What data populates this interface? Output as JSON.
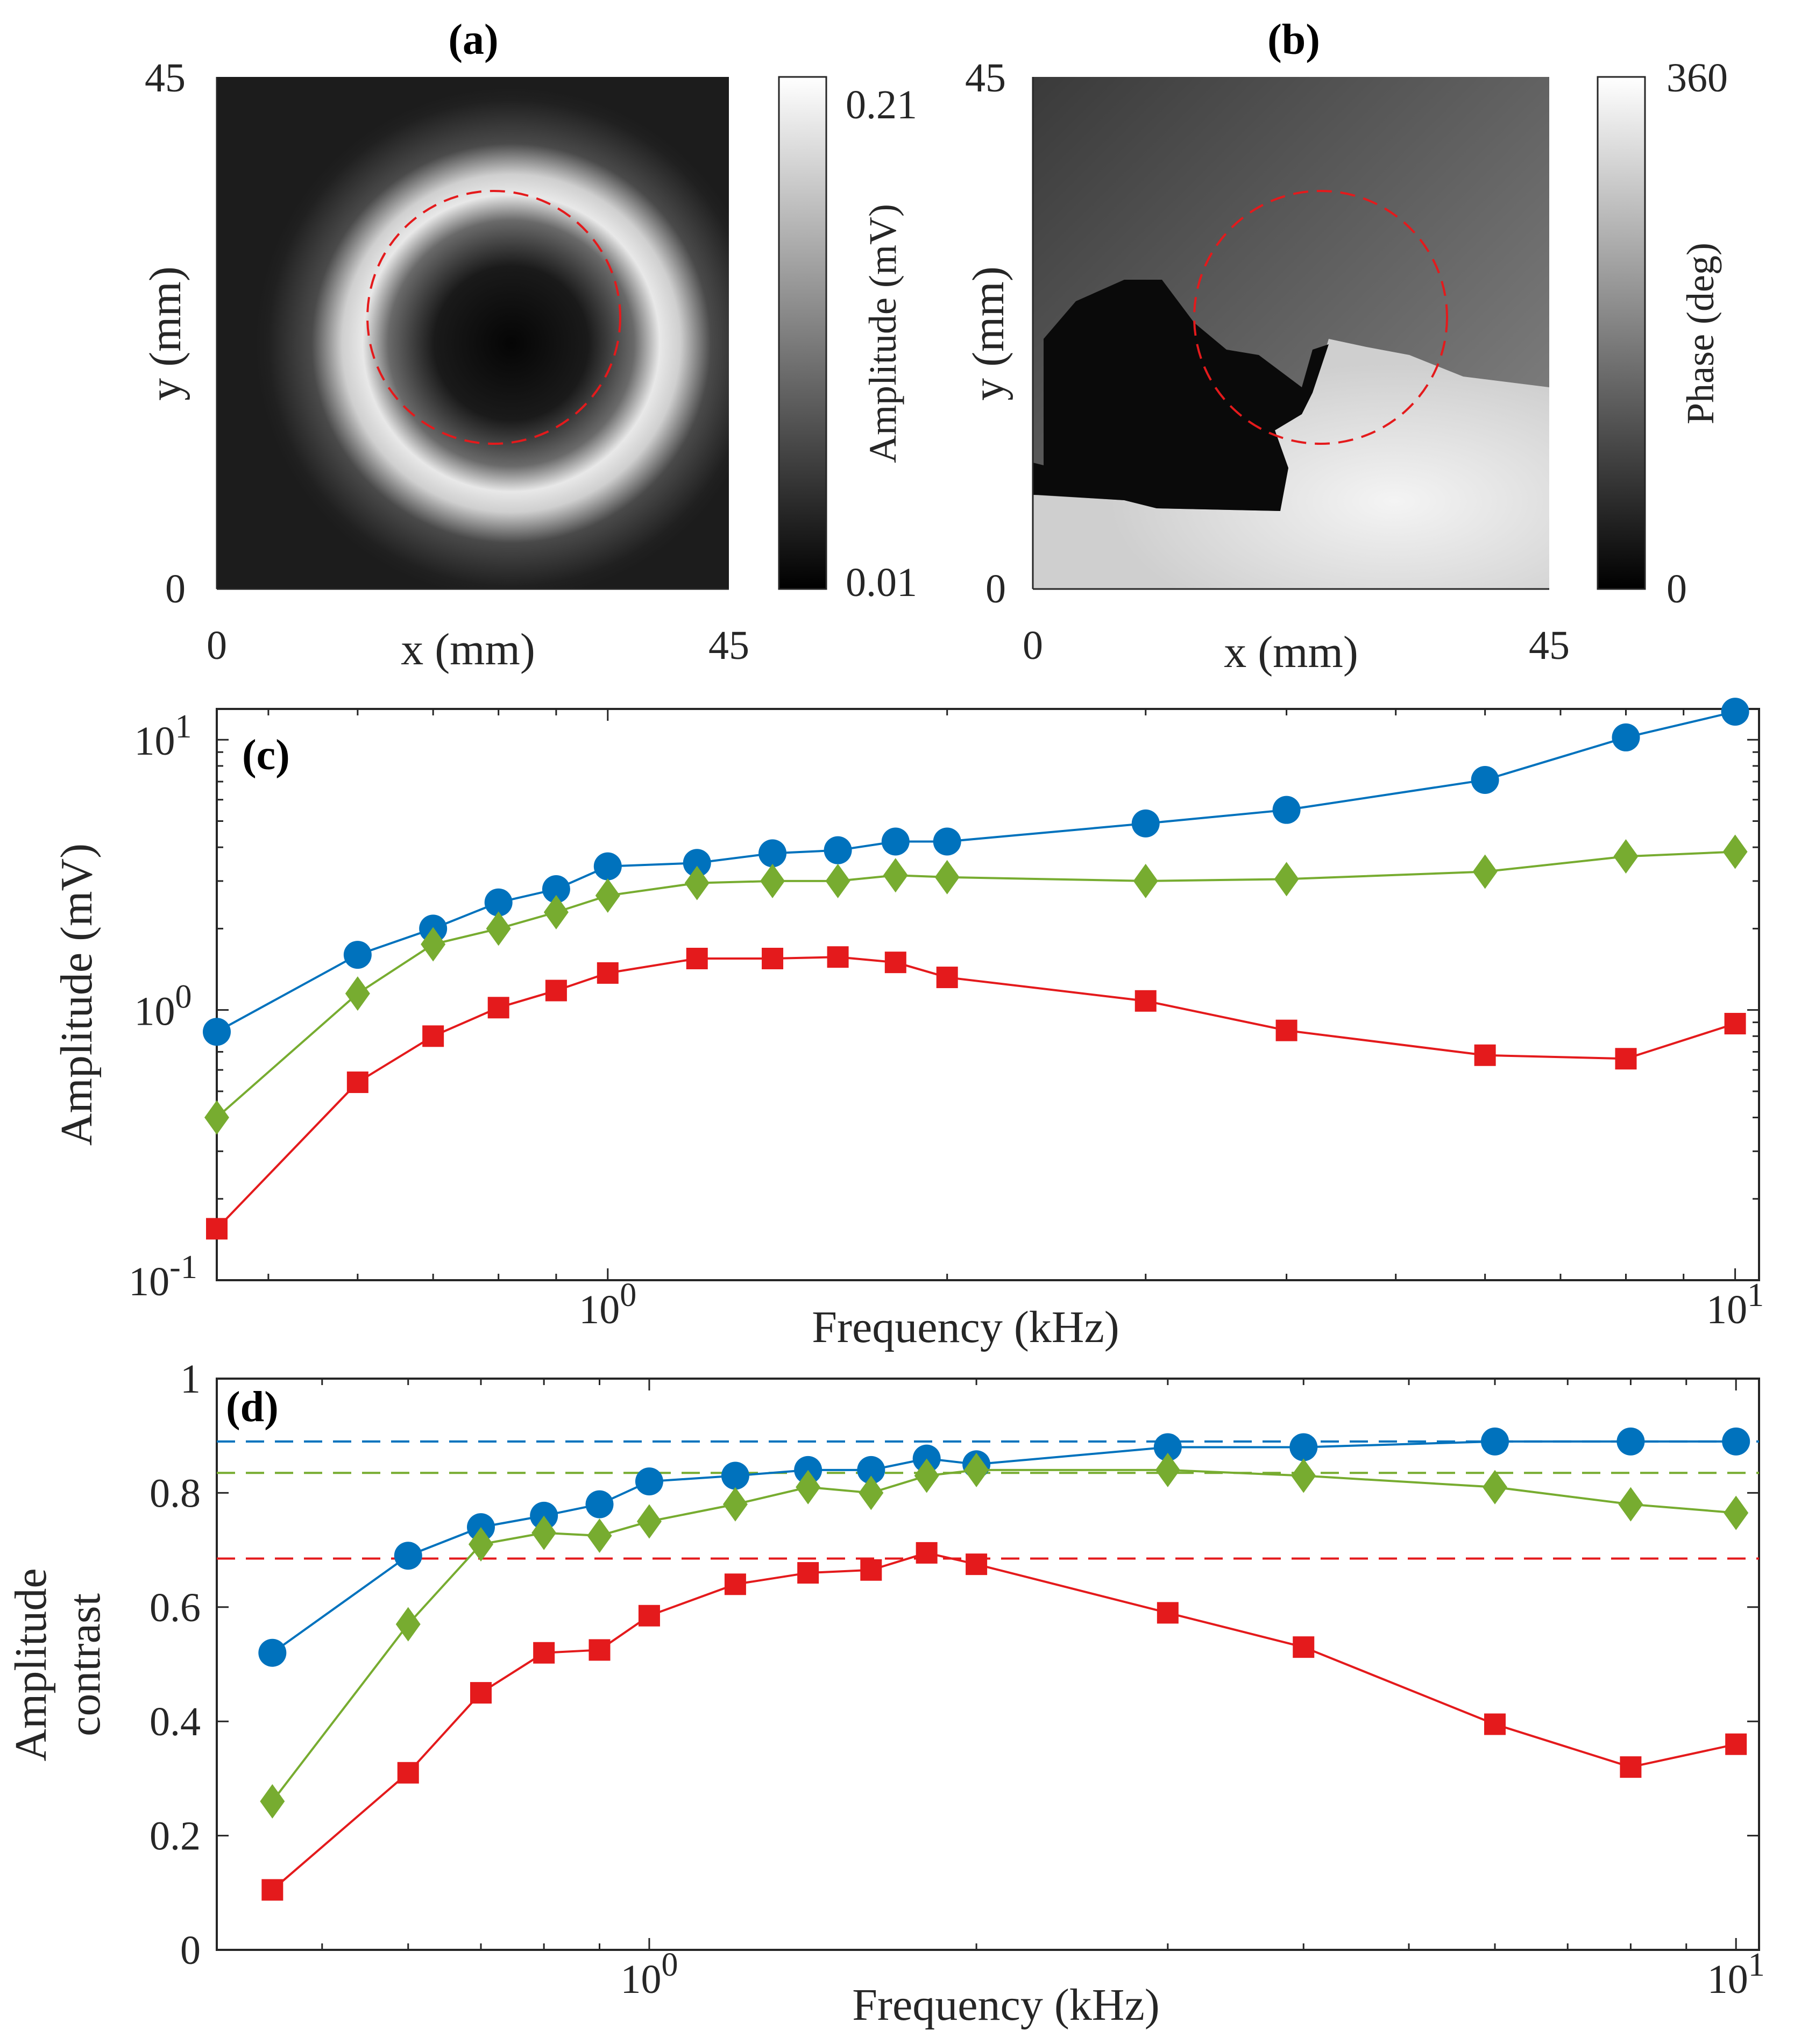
{
  "panels": {
    "a": {
      "title": "(a)",
      "xlabel": "x (mm)",
      "ylabel": "y (mm)",
      "x_ticks": [
        "0",
        "45"
      ],
      "y_ticks": [
        "0",
        "45"
      ],
      "colorbar": {
        "label": "Amplitude (mV)",
        "min_label": "0.01",
        "max_label": "0.21"
      }
    },
    "b": {
      "title": "(b)",
      "xlabel": "x (mm)",
      "ylabel": "y (mm)",
      "x_ticks": [
        "0",
        "45"
      ],
      "y_ticks": [
        "0",
        "45"
      ],
      "colorbar": {
        "label": "Phase (deg)",
        "min_label": "0",
        "max_label": "360"
      }
    }
  },
  "chart_data": [
    {
      "panel": "(c)",
      "type": "line",
      "xlabel": "Frequency (kHz)",
      "ylabel": "Amplitude (mV)",
      "xscale": "log",
      "yscale": "log",
      "xlim": [
        0.45,
        10.5
      ],
      "ylim": [
        0.1,
        13
      ],
      "x_ticks": [
        {
          "base": "10",
          "exp": "0"
        },
        {
          "base": "10",
          "exp": "1"
        }
      ],
      "y_ticks": [
        {
          "base": "10",
          "exp": "-1"
        },
        {
          "base": "10",
          "exp": "0"
        },
        {
          "base": "10",
          "exp": "1"
        }
      ],
      "x": [
        0.45,
        0.6,
        0.7,
        0.8,
        0.9,
        1.0,
        1.2,
        1.4,
        1.6,
        1.8,
        2.0,
        3.0,
        4.0,
        6.0,
        8.0,
        10.0
      ],
      "series": [
        {
          "color": "#0072BD",
          "marker": "circle",
          "values": [
            0.83,
            1.6,
            2.0,
            2.5,
            2.8,
            3.4,
            3.5,
            3.8,
            3.9,
            4.2,
            4.2,
            4.9,
            5.5,
            7.1,
            10.2,
            12.7
          ]
        },
        {
          "color": "#77AC30",
          "marker": "diamond",
          "values": [
            0.4,
            1.15,
            1.75,
            2.0,
            2.3,
            2.65,
            2.95,
            3.0,
            3.0,
            3.15,
            3.1,
            3.0,
            3.05,
            3.25,
            3.7,
            3.85
          ]
        },
        {
          "color": "#E41A1C",
          "marker": "square",
          "values": [
            0.155,
            0.54,
            0.8,
            1.02,
            1.18,
            1.37,
            1.55,
            1.55,
            1.57,
            1.5,
            1.32,
            1.08,
            0.84,
            0.68,
            0.66,
            0.89
          ]
        }
      ]
    },
    {
      "panel": "(d)",
      "type": "line",
      "xlabel": "Frequency (kHz)",
      "ylabel_lines": [
        "Amplitude",
        "contrast"
      ],
      "xscale": "log",
      "yscale": "linear",
      "xlim": [
        0.4,
        10.5
      ],
      "ylim": [
        0,
        1
      ],
      "x_ticks": [
        {
          "base": "10",
          "exp": "0"
        },
        {
          "base": "10",
          "exp": "1"
        }
      ],
      "y_ticks": [
        "0",
        "0.2",
        "0.4",
        "0.6",
        "0.8",
        "1"
      ],
      "x": [
        0.45,
        0.6,
        0.7,
        0.8,
        0.9,
        1.0,
        1.2,
        1.4,
        1.6,
        1.8,
        2.0,
        3.0,
        4.0,
        6.0,
        8.0,
        10.0
      ],
      "series": [
        {
          "color": "#0072BD",
          "marker": "circle",
          "values": [
            0.52,
            0.69,
            0.74,
            0.76,
            0.78,
            0.82,
            0.83,
            0.84,
            0.84,
            0.86,
            0.85,
            0.88,
            0.88,
            0.89,
            0.89,
            0.89
          ]
        },
        {
          "color": "#77AC30",
          "marker": "diamond",
          "values": [
            0.26,
            0.57,
            0.71,
            0.73,
            0.725,
            0.75,
            0.78,
            0.81,
            0.8,
            0.83,
            0.84,
            0.84,
            0.83,
            0.81,
            0.78,
            0.765
          ]
        },
        {
          "color": "#E41A1C",
          "marker": "square",
          "values": [
            0.105,
            0.31,
            0.45,
            0.52,
            0.525,
            0.585,
            0.64,
            0.66,
            0.665,
            0.695,
            0.675,
            0.59,
            0.53,
            0.395,
            0.32,
            0.36
          ]
        }
      ],
      "reference_lines": [
        {
          "color": "#0072BD",
          "y": 0.89
        },
        {
          "color": "#77AC30",
          "y": 0.835
        },
        {
          "color": "#E41A1C",
          "y": 0.685
        }
      ]
    }
  ]
}
